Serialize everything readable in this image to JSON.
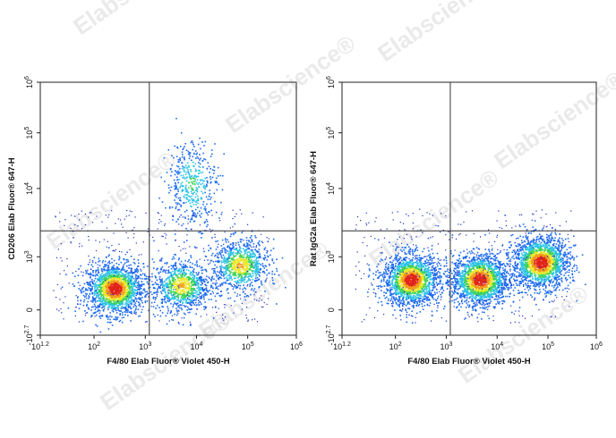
{
  "watermark": "Elabscience",
  "chart_data": [
    {
      "type": "scatter",
      "subtype": "flow-cytometry-density-dot-plot",
      "xlabel": "F4/80 Elab Fluor® Violet 450-H",
      "ylabel": "CD206 Elab Fluor® 647-H",
      "x_ticks": [
        {
          "base": "10",
          "exp": "1.2"
        },
        {
          "base": "10",
          "exp": "2"
        },
        {
          "base": "10",
          "exp": "3"
        },
        {
          "base": "10",
          "exp": "4"
        },
        {
          "base": "10",
          "exp": "5"
        },
        {
          "base": "10",
          "exp": "6"
        }
      ],
      "y_ticks": [
        {
          "base": "-10",
          "exp": "2.7"
        },
        {
          "base": "0",
          "exp": ""
        },
        {
          "base": "10",
          "exp": "3"
        },
        {
          "base": "10",
          "exp": "4"
        },
        {
          "base": "10",
          "exp": "5"
        },
        {
          "base": "10",
          "exp": "6"
        }
      ],
      "quadrant_gate": {
        "x": 1200,
        "y": 2400
      },
      "populations": [
        {
          "x": 250,
          "y": 200,
          "level": "high"
        },
        {
          "x": 5000,
          "y": 250,
          "level": "medium"
        },
        {
          "x": 70000,
          "y": 700,
          "level": "medium"
        },
        {
          "x": 8000,
          "y": 12000,
          "level": "low"
        }
      ]
    },
    {
      "type": "scatter",
      "subtype": "flow-cytometry-density-dot-plot",
      "xlabel": "F4/80 Elab Fluor® Violet 450-H",
      "ylabel": "Rat IgG2a  Elab Fluor® 647-H",
      "x_ticks": [
        {
          "base": "10",
          "exp": "1.2"
        },
        {
          "base": "10",
          "exp": "2"
        },
        {
          "base": "10",
          "exp": "3"
        },
        {
          "base": "10",
          "exp": "4"
        },
        {
          "base": "10",
          "exp": "5"
        },
        {
          "base": "10",
          "exp": "6"
        }
      ],
      "y_ticks": [
        {
          "base": "-10",
          "exp": "2.7"
        },
        {
          "base": "0",
          "exp": ""
        },
        {
          "base": "10",
          "exp": "3"
        },
        {
          "base": "10",
          "exp": "4"
        },
        {
          "base": "10",
          "exp": "5"
        },
        {
          "base": "10",
          "exp": "6"
        }
      ],
      "quadrant_gate": {
        "x": 1200,
        "y": 2400
      },
      "populations": [
        {
          "x": 200,
          "y": 350,
          "level": "high"
        },
        {
          "x": 4500,
          "y": 350,
          "level": "high"
        },
        {
          "x": 70000,
          "y": 800,
          "level": "high"
        }
      ]
    }
  ]
}
